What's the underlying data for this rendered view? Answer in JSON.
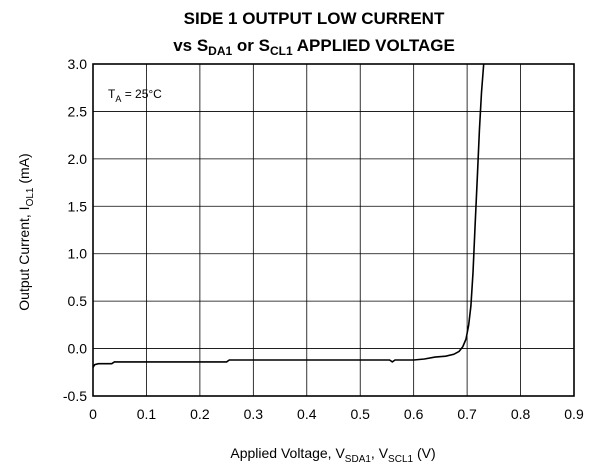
{
  "chart_data": {
    "type": "line",
    "title_line1": "SIDE 1 OUTPUT LOW CURRENT",
    "title_line2": {
      "prefix": "vs S",
      "sub1": "DA1",
      "middle": " or S",
      "sub2": "CL1",
      "suffix": " APPLIED VOLTAGE"
    },
    "xlabel": {
      "prefix": "Applied Voltage, V",
      "sub1": "SDA1",
      "middle": ", V",
      "sub2": "SCL1",
      "suffix": " (V)"
    },
    "ylabel": {
      "prefix": "Output Current, I",
      "sub1": "OL1",
      "suffix": " (mA)"
    },
    "annotation": {
      "prefix": "T",
      "sub1": "A",
      "suffix": " = 25°C"
    },
    "xlim": [
      0,
      0.9
    ],
    "ylim": [
      -0.5,
      3.0
    ],
    "x_ticks": [
      "0",
      "0.1",
      "0.2",
      "0.3",
      "0.4",
      "0.5",
      "0.6",
      "0.7",
      "0.8",
      "0.9"
    ],
    "x_tick_values": [
      0,
      0.1,
      0.2,
      0.3,
      0.4,
      0.5,
      0.6,
      0.7,
      0.8,
      0.9
    ],
    "y_ticks": [
      "-0.5",
      "0.0",
      "0.5",
      "1.0",
      "1.5",
      "2.0",
      "2.5",
      "3.0"
    ],
    "y_tick_values": [
      -0.5,
      0.0,
      0.5,
      1.0,
      1.5,
      2.0,
      2.5,
      3.0
    ],
    "grid": true,
    "series": [
      {
        "points": [
          [
            0.0,
            -0.2
          ],
          [
            0.003,
            -0.17
          ],
          [
            0.01,
            -0.16
          ],
          [
            0.035,
            -0.16
          ],
          [
            0.04,
            -0.14
          ],
          [
            0.1,
            -0.14
          ],
          [
            0.2,
            -0.14
          ],
          [
            0.25,
            -0.14
          ],
          [
            0.255,
            -0.12
          ],
          [
            0.3,
            -0.12
          ],
          [
            0.4,
            -0.12
          ],
          [
            0.5,
            -0.12
          ],
          [
            0.555,
            -0.12
          ],
          [
            0.56,
            -0.14
          ],
          [
            0.565,
            -0.12
          ],
          [
            0.6,
            -0.12
          ],
          [
            0.62,
            -0.11
          ],
          [
            0.64,
            -0.09
          ],
          [
            0.66,
            -0.08
          ],
          [
            0.675,
            -0.06
          ],
          [
            0.685,
            -0.03
          ],
          [
            0.692,
            0.02
          ],
          [
            0.698,
            0.1
          ],
          [
            0.703,
            0.25
          ],
          [
            0.707,
            0.45
          ],
          [
            0.711,
            0.8
          ],
          [
            0.715,
            1.3
          ],
          [
            0.719,
            1.8
          ],
          [
            0.723,
            2.3
          ],
          [
            0.727,
            2.7
          ],
          [
            0.731,
            3.0
          ]
        ]
      }
    ]
  }
}
